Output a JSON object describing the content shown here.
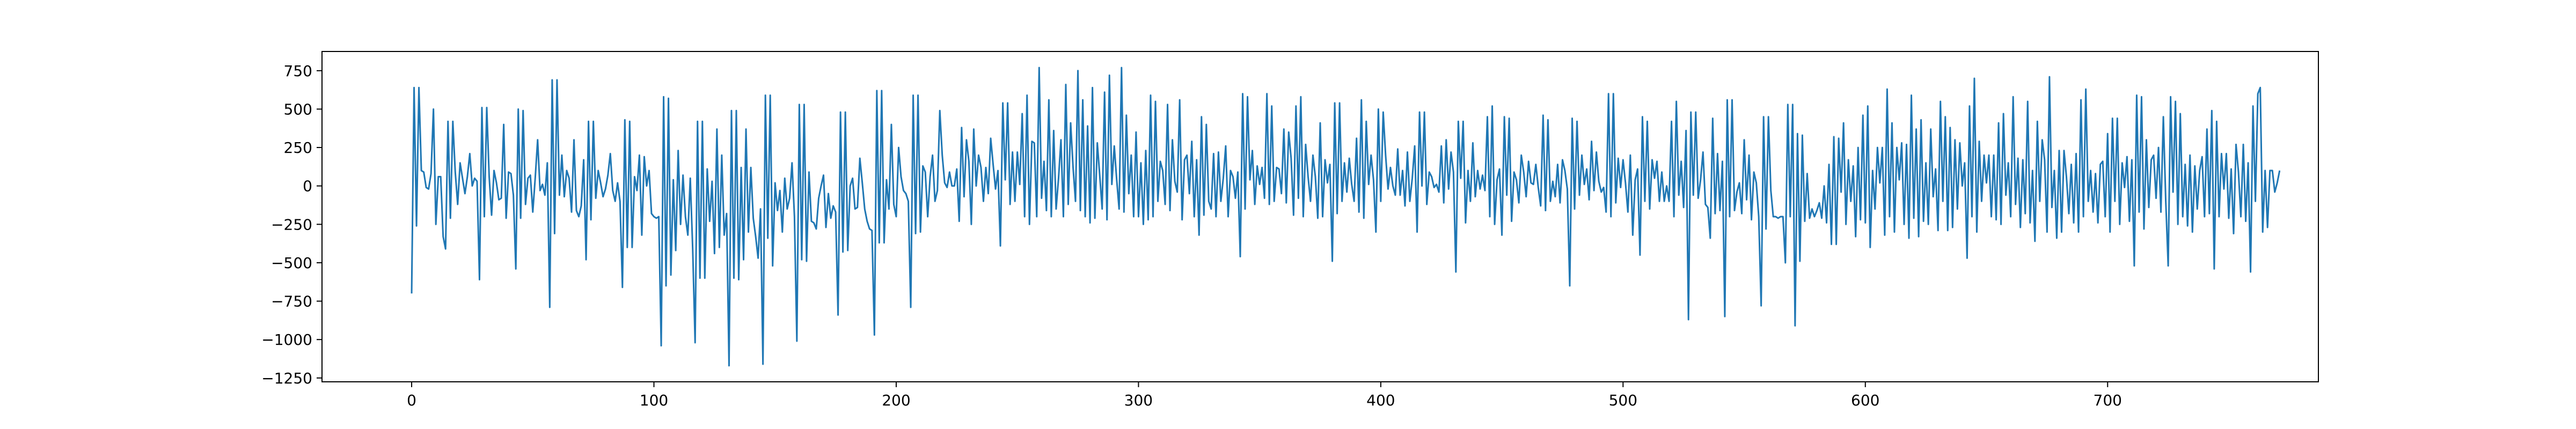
{
  "chart_data": {
    "type": "line",
    "title": "",
    "xlabel": "",
    "ylabel": "",
    "xlim": [
      -37,
      787
    ],
    "ylim": [
      -1275,
      875
    ],
    "xticks": [
      0,
      100,
      200,
      300,
      400,
      500,
      600,
      700
    ],
    "yticks": [
      -1250,
      -1000,
      -750,
      -500,
      -250,
      0,
      250,
      500,
      750
    ],
    "grid": false,
    "legend": "none",
    "color": "#1f77b4",
    "series": [
      {
        "n_points": 750,
        "values": [
          -700,
          640,
          -260,
          640,
          100,
          90,
          -10,
          -20,
          80,
          500,
          -250,
          60,
          60,
          -330,
          -410,
          420,
          -210,
          420,
          90,
          -120,
          150,
          50,
          -50,
          60,
          210,
          0,
          50,
          30,
          -610,
          510,
          -200,
          510,
          60,
          -190,
          100,
          20,
          -90,
          -80,
          400,
          -210,
          90,
          80,
          -60,
          -540,
          500,
          -210,
          490,
          -120,
          50,
          70,
          -170,
          50,
          300,
          -30,
          10,
          -60,
          150,
          -790,
          690,
          -310,
          690,
          -60,
          200,
          -70,
          100,
          50,
          -170,
          300,
          -160,
          -200,
          -130,
          170,
          -480,
          420,
          -220,
          420,
          -80,
          100,
          20,
          -70,
          -20,
          70,
          210,
          -30,
          -100,
          20,
          -100,
          -660,
          430,
          -400,
          420,
          -400,
          60,
          -30,
          200,
          -320,
          190,
          0,
          100,
          -180,
          -200,
          -210,
          -200,
          -1040,
          580,
          -650,
          570,
          -580,
          40,
          -420,
          230,
          -250,
          70,
          -200,
          -320,
          50,
          -410,
          -1020,
          420,
          -600,
          420,
          -600,
          110,
          -230,
          30,
          -440,
          370,
          -400,
          200,
          -320,
          -180,
          -1170,
          490,
          -600,
          490,
          -610,
          120,
          -480,
          370,
          -300,
          120,
          -210,
          -330,
          -470,
          -150,
          -1160,
          590,
          -340,
          590,
          -520,
          20,
          -160,
          -30,
          -300,
          50,
          -150,
          -80,
          150,
          -200,
          -1010,
          530,
          -480,
          530,
          -490,
          90,
          -230,
          -240,
          -280,
          -80,
          0,
          70,
          -270,
          -50,
          -210,
          -130,
          -170,
          -840,
          480,
          -430,
          480,
          -420,
          0,
          50,
          -150,
          -140,
          180,
          20,
          -150,
          -230,
          -280,
          -290,
          -970,
          620,
          -370,
          620,
          -370,
          40,
          -150,
          400,
          -120,
          -200,
          250,
          60,
          -30,
          -50,
          -100,
          -790,
          590,
          -310,
          590,
          -300,
          130,
          90,
          -200,
          60,
          200,
          -100,
          -30,
          490,
          200,
          20,
          -10,
          90,
          0,
          0,
          110,
          -230,
          380,
          -70,
          300,
          160,
          -250,
          370,
          0,
          200,
          120,
          -100,
          120,
          -50,
          310,
          140,
          -20,
          100,
          -390,
          540,
          40,
          540,
          -120,
          220,
          -100,
          220,
          10,
          470,
          -200,
          590,
          -250,
          290,
          280,
          -200,
          770,
          -80,
          160,
          -160,
          560,
          -200,
          360,
          -150,
          50,
          300,
          -200,
          660,
          -120,
          410,
          120,
          -100,
          750,
          -160,
          560,
          -200,
          390,
          -240,
          640,
          -210,
          280,
          70,
          -150,
          610,
          -220,
          720,
          10,
          260,
          40,
          -150,
          770,
          -170,
          460,
          -50,
          200,
          -200,
          350,
          -200,
          150,
          -250,
          230,
          -220,
          590,
          -200,
          550,
          -100,
          160,
          100,
          -120,
          530,
          -160,
          300,
          30,
          -40,
          560,
          -220,
          170,
          200,
          -50,
          290,
          -200,
          170,
          -320,
          450,
          -190,
          400,
          -100,
          -150,
          210,
          -200,
          220,
          -100,
          50,
          260,
          -200,
          100,
          60,
          -80,
          90,
          -460,
          600,
          -150,
          580,
          40,
          230,
          -120,
          130,
          10,
          120,
          -80,
          600,
          -120,
          520,
          -100,
          120,
          110,
          -50,
          370,
          -110,
          350,
          180,
          -190,
          520,
          -80,
          580,
          -200,
          270,
          60,
          -100,
          200,
          60,
          -210,
          410,
          -200,
          170,
          20,
          140,
          -490,
          540,
          -180,
          540,
          -100,
          150,
          -40,
          180,
          10,
          -100,
          310,
          -170,
          560,
          -210,
          420,
          10,
          200,
          40,
          -300,
          500,
          -100,
          480,
          200,
          -20,
          120,
          0,
          -60,
          240,
          -60,
          100,
          -130,
          220,
          -100,
          50,
          260,
          -300,
          480,
          0,
          480,
          -120,
          90,
          60,
          -10,
          10,
          -40,
          260,
          -110,
          300,
          -20,
          220,
          90,
          -560,
          420,
          50,
          420,
          -240,
          100,
          -100,
          280,
          -70,
          100,
          -20,
          70,
          -30,
          450,
          -200,
          520,
          -250,
          40,
          110,
          -320,
          450,
          -60,
          440,
          -230,
          90,
          40,
          -110,
          200,
          90,
          -70,
          160,
          20,
          10,
          140,
          -10,
          -130,
          460,
          -160,
          430,
          -100,
          30,
          -70,
          140,
          -110,
          170,
          100,
          -20,
          -650,
          440,
          -150,
          420,
          -60,
          200,
          10,
          110,
          -90,
          290,
          -30,
          220,
          30,
          -40,
          -10,
          -170,
          600,
          -200,
          600,
          -110,
          180,
          -10,
          170,
          20,
          -170,
          200,
          -320,
          40,
          110,
          -450,
          450,
          -100,
          420,
          -150,
          170,
          50,
          160,
          -100,
          90,
          -100,
          0,
          -100,
          420,
          -200,
          550,
          -60,
          160,
          -140,
          360,
          -870,
          480,
          -60,
          480,
          -80,
          40,
          220,
          -120,
          -140,
          -340,
          440,
          -180,
          210,
          -160,
          160,
          -850,
          560,
          -200,
          560,
          -160,
          -40,
          20,
          -180,
          300,
          -90,
          200,
          -220,
          90,
          20,
          -200,
          -780,
          450,
          -280,
          450,
          -30,
          -200,
          -200,
          -210,
          -200,
          -200,
          -500,
          530,
          -200,
          530,
          -910,
          340,
          -490,
          330,
          -230,
          80,
          -210,
          -150,
          -200,
          -160,
          -110,
          -210,
          0,
          -240,
          140,
          -380,
          320,
          -380,
          310,
          -40,
          410,
          -250,
          170,
          -100,
          130,
          -330,
          250,
          -220,
          460,
          -240,
          520,
          -400,
          100,
          -150,
          250,
          20,
          250,
          -320,
          630,
          -200,
          410,
          -300,
          250,
          40,
          280,
          -250,
          270,
          -340,
          590,
          -210,
          370,
          -330,
          430,
          -230,
          150,
          -250,
          370,
          -70,
          110,
          -290,
          550,
          -100,
          450,
          -290,
          380,
          -270,
          300,
          -150,
          280,
          0,
          150,
          -470,
          520,
          -200,
          700,
          -300,
          290,
          -100,
          200,
          20,
          200,
          -200,
          200,
          -220,
          410,
          -250,
          470,
          -60,
          150,
          -200,
          580,
          -120,
          180,
          -270,
          170,
          -180,
          550,
          -240,
          100,
          -360,
          420,
          -100,
          300,
          170,
          -300,
          710,
          -140,
          100,
          -340,
          230,
          -300,
          230,
          60,
          -180,
          140,
          -240,
          210,
          -300,
          560,
          -200,
          630,
          -100,
          100,
          -170,
          80,
          -240,
          140,
          160,
          -200,
          340,
          -300,
          440,
          -100,
          440,
          -250,
          150,
          -10,
          190,
          -230,
          170,
          -520,
          590,
          -170,
          580,
          -280,
          300,
          -140,
          170,
          200,
          -80,
          250,
          -170,
          450,
          -100,
          -520,
          580,
          -40,
          550,
          -250,
          470,
          -200,
          140,
          -260,
          200,
          -300,
          130,
          -150,
          100,
          190,
          -200,
          370,
          -180,
          490,
          -540,
          420,
          -200,
          210,
          -20,
          210,
          -210,
          110,
          -310,
          270,
          90,
          -200,
          270,
          -230,
          150,
          -560,
          520,
          -100,
          600,
          640,
          -300,
          100,
          -270,
          100,
          100,
          -40,
          20,
          100
        ]
      }
    ]
  }
}
